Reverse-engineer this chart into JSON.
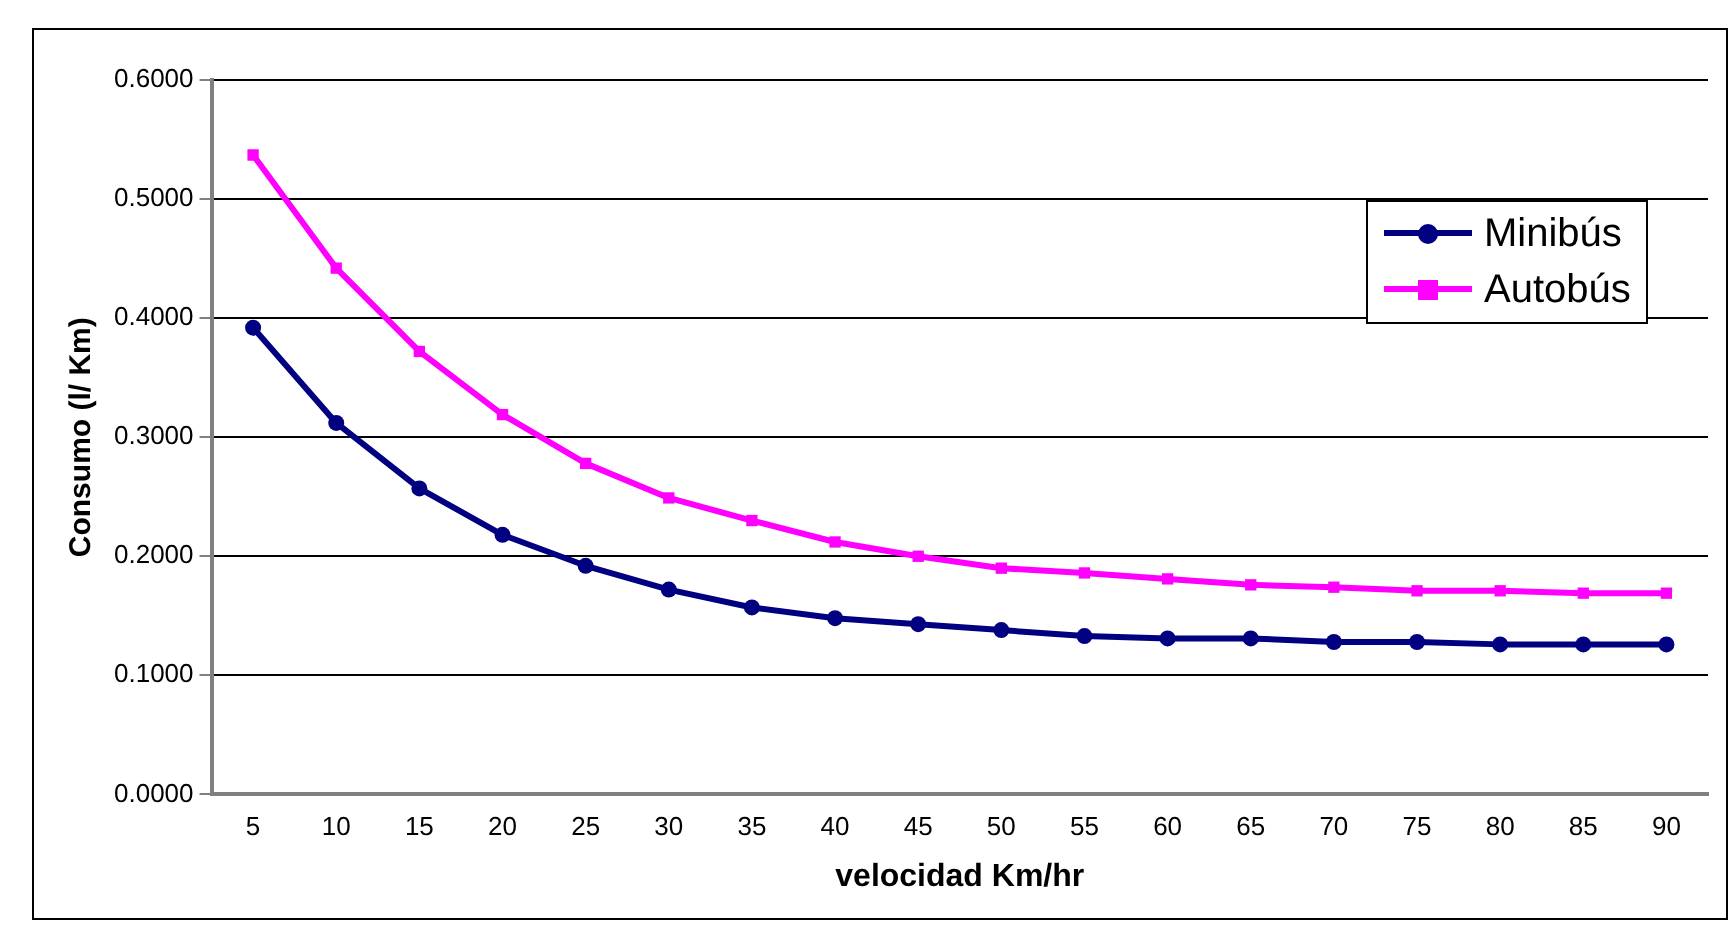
{
  "chart_data": {
    "type": "line",
    "xlabel": "velocidad Km/hr",
    "ylabel": "Consumo (l/ Km)",
    "categories": [
      "5",
      "10",
      "15",
      "20",
      "25",
      "30",
      "35",
      "40",
      "45",
      "50",
      "55",
      "60",
      "65",
      "70",
      "75",
      "80",
      "85",
      "90"
    ],
    "series": [
      {
        "name": "Minibús",
        "color": "#000080",
        "marker": "circle",
        "values": [
          0.392,
          0.312,
          0.257,
          0.218,
          0.192,
          0.172,
          0.157,
          0.148,
          0.143,
          0.138,
          0.133,
          0.131,
          0.131,
          0.128,
          0.128,
          0.126,
          0.126,
          0.126
        ]
      },
      {
        "name": "Autobús",
        "color": "#ff00ff",
        "marker": "square",
        "values": [
          0.537,
          0.442,
          0.372,
          0.319,
          0.278,
          0.249,
          0.23,
          0.212,
          0.2,
          0.19,
          0.186,
          0.181,
          0.176,
          0.174,
          0.171,
          0.171,
          0.169,
          0.169
        ]
      }
    ],
    "ylim": [
      0,
      0.6
    ],
    "yticks": [
      {
        "value": 0,
        "label": "0.0000"
      },
      {
        "value": 0.1,
        "label": "0.1000"
      },
      {
        "value": 0.2,
        "label": "0.2000"
      },
      {
        "value": 0.3,
        "label": "0.3000"
      },
      {
        "value": 0.4,
        "label": "0.4000"
      },
      {
        "value": 0.5,
        "label": "0.5000"
      },
      {
        "value": 0.6,
        "label": "0.6000"
      }
    ],
    "grid": "y",
    "legend": "top right",
    "line_style": "solid"
  }
}
